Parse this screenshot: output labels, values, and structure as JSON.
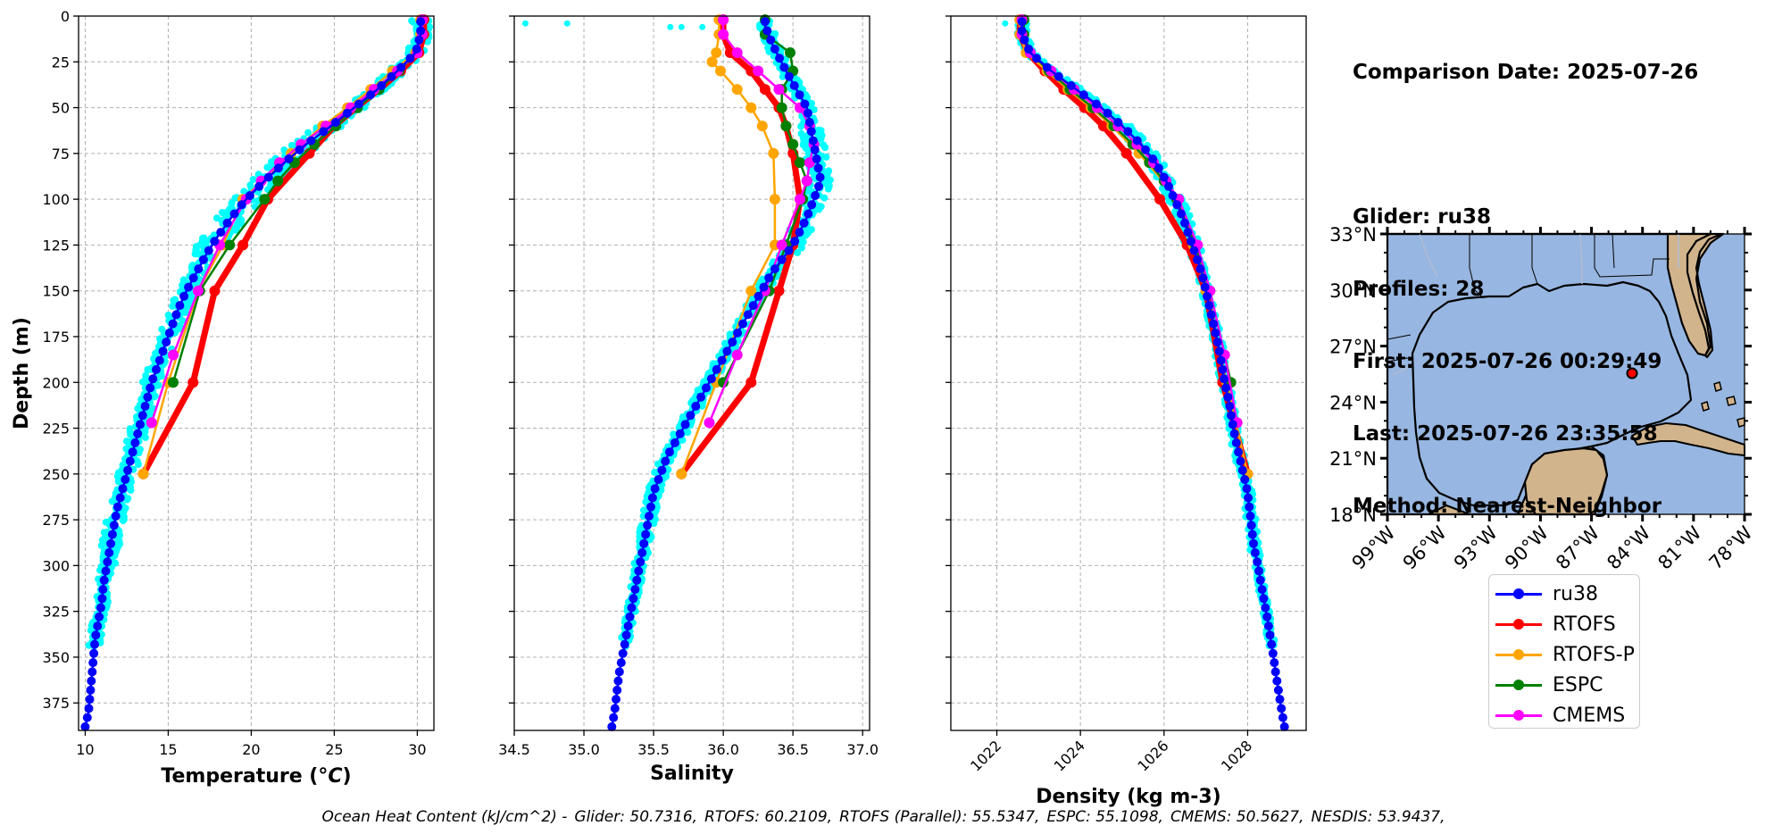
{
  "chart_data": [
    {
      "type": "line",
      "panel": "temperature",
      "xlabel": "Temperature (°C)",
      "ylabel": "Depth (m)",
      "xlim": [
        9.6,
        31
      ],
      "ylim": [
        390,
        0
      ],
      "xticks": [
        "10",
        "15",
        "20",
        "25",
        "30"
      ],
      "yticks": [
        "0",
        "25",
        "50",
        "75",
        "100",
        "125",
        "150",
        "175",
        "200",
        "225",
        "250",
        "275",
        "300",
        "325",
        "350",
        "375"
      ],
      "grid": true,
      "series": [
        {
          "name": "ru38",
          "color": "#0000ff",
          "depth": [
            2,
            10,
            20,
            30,
            40,
            50,
            60,
            70,
            80,
            90,
            100,
            110,
            120,
            130,
            140,
            150,
            160,
            170,
            180,
            190,
            200,
            210,
            220,
            230,
            240,
            250,
            260,
            270,
            280,
            290,
            300,
            310,
            320,
            330,
            340,
            350,
            360,
            370,
            380,
            388
          ],
          "values": [
            30.2,
            30.2,
            29.9,
            28.8,
            27.6,
            26.2,
            24.8,
            23.3,
            22.0,
            20.8,
            19.7,
            18.8,
            18.0,
            17.3,
            16.7,
            16.1,
            15.6,
            15.2,
            14.8,
            14.4,
            14.0,
            13.7,
            13.4,
            13.1,
            12.8,
            12.5,
            12.2,
            11.9,
            11.7,
            11.5,
            11.3,
            11.1,
            11.0,
            10.8,
            10.6,
            10.5,
            10.4,
            10.3,
            10.2,
            10.0
          ]
        },
        {
          "name": "RTOFS",
          "color": "#ff0000",
          "depth": [
            2,
            10,
            20,
            30,
            40,
            50,
            60,
            75,
            100,
            125,
            150,
            200,
            250
          ],
          "values": [
            30.4,
            30.4,
            30.1,
            29.0,
            27.7,
            26.3,
            25.0,
            23.5,
            21.0,
            19.5,
            17.8,
            16.5,
            13.5
          ]
        },
        {
          "name": "RTOFS-P",
          "color": "#ffa500",
          "depth": [
            2,
            10,
            20,
            30,
            40,
            50,
            60,
            75,
            100,
            125,
            150,
            200,
            250
          ],
          "values": [
            30.2,
            30.2,
            29.9,
            28.5,
            27.2,
            25.8,
            24.3,
            22.4,
            19.5,
            18.3,
            16.8,
            15.0,
            13.5
          ]
        },
        {
          "name": "ESPC",
          "color": "#008000",
          "depth": [
            2,
            10,
            20,
            30,
            40,
            50,
            60,
            70,
            80,
            90,
            100,
            125,
            150,
            200
          ],
          "values": [
            30.3,
            30.3,
            30.0,
            28.9,
            27.7,
            26.4,
            25.1,
            23.8,
            22.6,
            21.6,
            20.8,
            18.7,
            16.9,
            15.3
          ]
        },
        {
          "name": "CMEMS",
          "color": "#ff00ff",
          "depth": [
            2,
            10,
            20,
            30,
            40,
            50,
            60,
            70,
            80,
            90,
            100,
            125,
            150,
            185,
            222
          ],
          "values": [
            30.3,
            30.3,
            30.0,
            28.8,
            27.4,
            26.0,
            24.5,
            23.0,
            21.7,
            20.6,
            19.7,
            18.1,
            16.8,
            15.3,
            14.0
          ]
        }
      ]
    },
    {
      "type": "line",
      "panel": "salinity",
      "xlabel": "Salinity",
      "xlim": [
        34.5,
        37.05
      ],
      "ylim": [
        390,
        0
      ],
      "xticks": [
        "34.5",
        "35.0",
        "35.5",
        "36.0",
        "36.5",
        "37.0"
      ],
      "grid": true,
      "series": [
        {
          "name": "ru38",
          "color": "#0000ff",
          "depth": [
            2,
            5,
            15,
            30,
            50,
            70,
            90,
            110,
            125,
            140,
            160,
            180,
            200,
            220,
            240,
            260,
            280,
            300,
            320,
            340,
            360,
            380,
            388
          ],
          "values": [
            36.3,
            36.3,
            36.35,
            36.45,
            36.6,
            36.65,
            36.7,
            36.6,
            36.5,
            36.35,
            36.2,
            36.05,
            35.9,
            35.75,
            35.6,
            35.5,
            35.45,
            35.4,
            35.35,
            35.3,
            35.25,
            35.22,
            35.2
          ]
        },
        {
          "name": "RTOFS",
          "color": "#ff0000",
          "depth": [
            2,
            10,
            20,
            30,
            40,
            50,
            60,
            75,
            100,
            125,
            150,
            200,
            250
          ],
          "values": [
            36.0,
            36.0,
            36.05,
            36.2,
            36.3,
            36.4,
            36.45,
            36.5,
            36.55,
            36.5,
            36.4,
            36.2,
            35.7
          ]
        },
        {
          "name": "RTOFS-P",
          "color": "#ffa500",
          "depth": [
            2,
            10,
            20,
            25,
            30,
            40,
            50,
            60,
            75,
            100,
            125,
            150,
            200,
            250
          ],
          "values": [
            35.97,
            35.97,
            35.95,
            35.92,
            35.98,
            36.1,
            36.2,
            36.28,
            36.36,
            36.37,
            36.37,
            36.2,
            35.95,
            35.7
          ]
        },
        {
          "name": "ESPC",
          "color": "#008000",
          "depth": [
            2,
            10,
            20,
            30,
            40,
            50,
            60,
            70,
            80,
            90,
            100,
            125,
            150,
            200
          ],
          "values": [
            36.3,
            36.3,
            36.48,
            36.5,
            36.42,
            36.42,
            36.45,
            36.5,
            36.55,
            36.6,
            36.57,
            36.45,
            36.33,
            36.0
          ]
        },
        {
          "name": "CMEMS",
          "color": "#ff00ff",
          "depth": [
            2,
            10,
            20,
            30,
            40,
            50,
            60,
            70,
            80,
            90,
            100,
            125,
            150,
            185,
            222
          ],
          "values": [
            36.0,
            36.0,
            36.1,
            36.25,
            36.4,
            36.55,
            36.62,
            36.65,
            36.62,
            36.6,
            36.55,
            36.42,
            36.3,
            36.1,
            35.9
          ]
        }
      ]
    },
    {
      "type": "line",
      "panel": "density",
      "xlabel": "Density (kg m-3)",
      "xlim": [
        1020.9,
        1029.4
      ],
      "ylim": [
        390,
        0
      ],
      "xticks": [
        "1022",
        "1024",
        "1026",
        "1028"
      ],
      "grid": true,
      "series": [
        {
          "name": "ru38",
          "color": "#0000ff",
          "depth": [
            2,
            10,
            20,
            30,
            40,
            50,
            60,
            70,
            80,
            90,
            100,
            110,
            120,
            130,
            140,
            150,
            160,
            170,
            180,
            190,
            200,
            210,
            220,
            230,
            240,
            250,
            260,
            270,
            280,
            290,
            300,
            310,
            320,
            330,
            340,
            350,
            360,
            370,
            380,
            388
          ],
          "values": [
            1022.6,
            1022.6,
            1022.8,
            1023.3,
            1023.9,
            1024.5,
            1025.0,
            1025.45,
            1025.8,
            1026.05,
            1026.25,
            1026.45,
            1026.6,
            1026.75,
            1026.9,
            1027.0,
            1027.1,
            1027.2,
            1027.3,
            1027.38,
            1027.45,
            1027.55,
            1027.62,
            1027.7,
            1027.8,
            1027.9,
            1028.0,
            1028.05,
            1028.1,
            1028.15,
            1028.25,
            1028.32,
            1028.4,
            1028.48,
            1028.55,
            1028.62,
            1028.68,
            1028.75,
            1028.82,
            1028.88
          ]
        },
        {
          "name": "RTOFS",
          "color": "#ff0000",
          "depth": [
            2,
            10,
            20,
            30,
            40,
            50,
            60,
            75,
            100,
            125,
            150,
            200,
            250
          ],
          "values": [
            1022.55,
            1022.55,
            1022.75,
            1023.15,
            1023.6,
            1024.1,
            1024.55,
            1025.1,
            1025.9,
            1026.55,
            1027.0,
            1027.4,
            1028.0
          ]
        },
        {
          "name": "RTOFS-P",
          "color": "#ffa500",
          "depth": [
            2,
            10,
            20,
            30,
            40,
            50,
            60,
            75,
            100,
            125,
            150,
            200,
            250
          ],
          "values": [
            1022.55,
            1022.55,
            1022.7,
            1023.2,
            1023.7,
            1024.25,
            1024.75,
            1025.4,
            1026.35,
            1026.7,
            1027.0,
            1027.5,
            1028.0
          ]
        },
        {
          "name": "ESPC",
          "color": "#008000",
          "depth": [
            2,
            10,
            20,
            30,
            40,
            50,
            60,
            70,
            80,
            90,
            100,
            125,
            150,
            200
          ],
          "values": [
            1022.65,
            1022.65,
            1022.8,
            1023.25,
            1023.75,
            1024.3,
            1024.8,
            1025.25,
            1025.65,
            1026.0,
            1026.3,
            1026.75,
            1027.1,
            1027.6
          ]
        },
        {
          "name": "CMEMS",
          "color": "#ff00ff",
          "depth": [
            2,
            10,
            20,
            30,
            40,
            50,
            60,
            70,
            80,
            90,
            100,
            125,
            150,
            185,
            222
          ],
          "values": [
            1022.6,
            1022.6,
            1022.8,
            1023.3,
            1023.85,
            1024.4,
            1024.9,
            1025.35,
            1025.75,
            1026.05,
            1026.35,
            1026.8,
            1027.1,
            1027.45,
            1027.75
          ]
        }
      ]
    }
  ],
  "info": {
    "comparison_date": "Comparison Date: 2025-07-26",
    "glider": "Glider: ru38",
    "profiles": "Profiles: 28",
    "first": "First: 2025-07-26 00:29:49",
    "last": "Last: 2025-07-26 23:35:58",
    "method": "Method: Nearest-Neighbor"
  },
  "map": {
    "lat_ticks": [
      "33°N",
      "30°N",
      "27°N",
      "24°N",
      "21°N",
      "18°N"
    ],
    "lon_ticks": [
      "99°W",
      "96°W",
      "93°W",
      "90°W",
      "87°W",
      "84°W",
      "81°W",
      "78°W"
    ],
    "glider_position": {
      "lat": 25.7,
      "lon": -85.4
    },
    "land_color": "#d2b48c",
    "water_color": "#97b6e1"
  },
  "legend": [
    {
      "label": "ru38",
      "color": "#0000ff"
    },
    {
      "label": "RTOFS",
      "color": "#ff0000"
    },
    {
      "label": "RTOFS-P",
      "color": "#ffa500"
    },
    {
      "label": "ESPC",
      "color": "#008000"
    },
    {
      "label": "CMEMS",
      "color": "#ff00ff"
    }
  ],
  "footer": {
    "title": "Ocean Heat Content (kJ/cm^2) -",
    "glider": "Glider: 50.7316,",
    "rtofs": "RTOFS: 60.2109,",
    "rtofs_p": "RTOFS (Parallel): 55.5347,",
    "espc": "ESPC: 55.1098,",
    "cmems": "CMEMS: 50.5627,",
    "nesdis": "NESDIS: 53.9437,"
  },
  "glider_scatter_color": "#00ffff"
}
